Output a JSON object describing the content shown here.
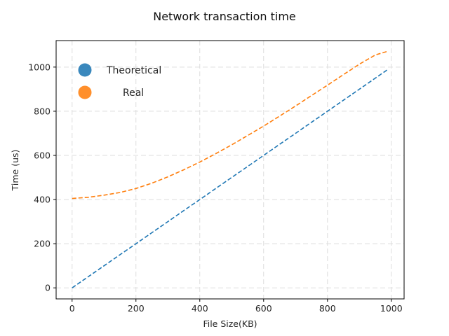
{
  "chart_data": {
    "type": "line",
    "title": "Network transaction time",
    "xlabel": "File Size(KB)",
    "ylabel": "Time (us)",
    "xlim": [
      -50,
      1040
    ],
    "ylim": [
      -50,
      1120
    ],
    "xticks": [
      0,
      200,
      400,
      600,
      800,
      1000
    ],
    "yticks": [
      0,
      200,
      400,
      600,
      800,
      1000
    ],
    "grid": true,
    "legend_position": "top-left",
    "x": [
      0,
      50,
      100,
      150,
      200,
      250,
      300,
      350,
      400,
      450,
      500,
      550,
      600,
      650,
      700,
      750,
      800,
      850,
      900,
      950,
      990
    ],
    "series": [
      {
        "name": "Theoretical",
        "color": "#1f77b4",
        "line_style": "dashed",
        "values": [
          0,
          50,
          100,
          150,
          200,
          250,
          300,
          350,
          400,
          450,
          500,
          550,
          600,
          650,
          700,
          750,
          800,
          850,
          900,
          950,
          990
        ]
      },
      {
        "name": "Real",
        "color": "#ff7f0e",
        "line_style": "dashed",
        "values": [
          405,
          410,
          420,
          432,
          450,
          474,
          503,
          535,
          570,
          608,
          648,
          690,
          733,
          778,
          824,
          871,
          918,
          966,
          1013,
          1055,
          1072
        ]
      }
    ]
  }
}
